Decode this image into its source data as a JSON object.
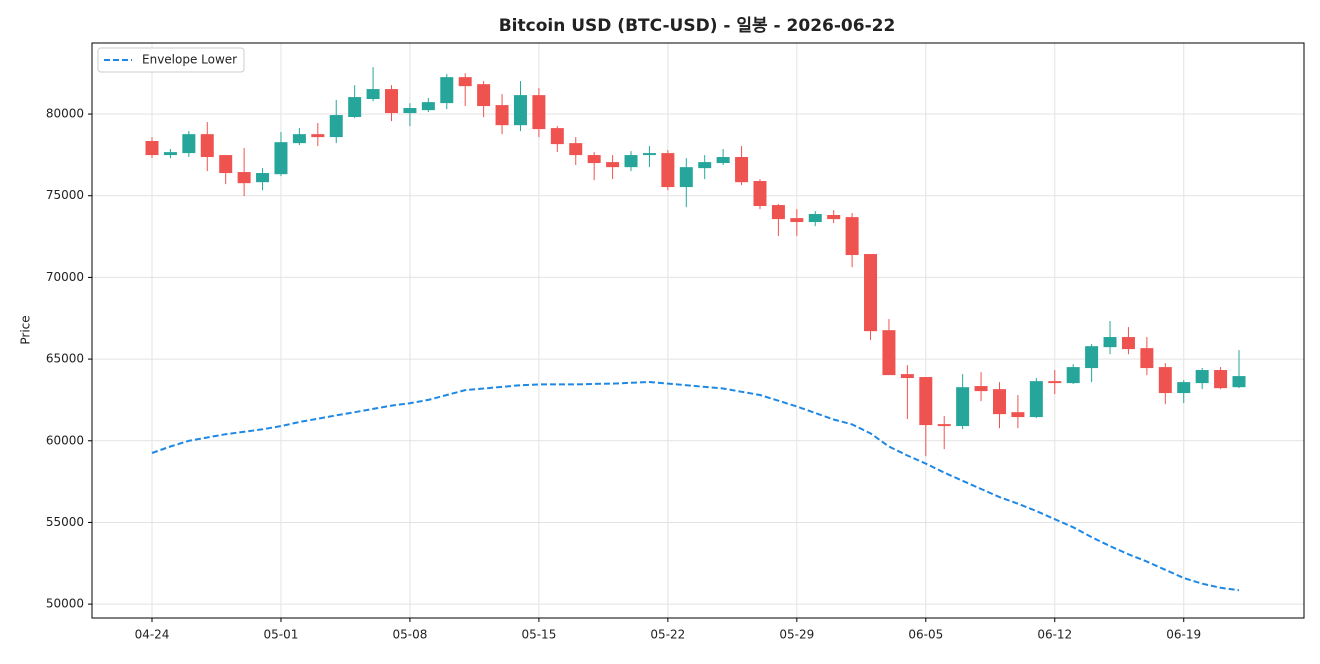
{
  "chart_data": {
    "type": "candlestick",
    "title": "Bitcoin USD (BTC-USD) - 일봉 - 2026-06-22",
    "ylabel": "Price",
    "categories": [
      "04-24",
      null,
      null,
      null,
      null,
      null,
      null,
      "05-01",
      null,
      null,
      null,
      null,
      null,
      null,
      "05-08",
      null,
      null,
      null,
      null,
      null,
      null,
      "05-15",
      null,
      null,
      null,
      null,
      null,
      null,
      "05-22",
      null,
      null,
      null,
      null,
      null,
      null,
      "05-29",
      null,
      null,
      null,
      null,
      null,
      null,
      "06-05",
      null,
      null,
      null,
      null,
      null,
      null,
      "06-12",
      null,
      null,
      null,
      null,
      null,
      null,
      "06-19",
      null,
      null,
      null
    ],
    "open": [
      78350,
      77490,
      77610,
      78770,
      77490,
      76450,
      75830,
      76320,
      78220,
      78770,
      78590,
      79820,
      80920,
      81530,
      80060,
      80240,
      80670,
      82260,
      81830,
      80550,
      79320,
      81160,
      79140,
      78220,
      77490,
      77060,
      76750,
      77490,
      77610,
      75530,
      76690,
      77000,
      77370,
      75900,
      74430,
      73630,
      73390,
      73820,
      73690,
      71430,
      66770,
      64080,
      63900,
      61020,
      60900,
      63350,
      63160,
      61750,
      61450,
      63650,
      63530,
      64450,
      65730,
      66350,
      65670,
      64510,
      62920,
      63530,
      64330,
      63280
    ],
    "high": [
      78590,
      77860,
      78960,
      79510,
      77490,
      77920,
      76690,
      78900,
      79140,
      79450,
      80860,
      81770,
      82870,
      81770,
      80670,
      80980,
      82450,
      82500,
      82020,
      81220,
      82020,
      81590,
      79260,
      78590,
      77670,
      77490,
      77730,
      78040,
      77800,
      77300,
      77490,
      77860,
      78040,
      76020,
      74490,
      74180,
      74060,
      74120,
      73940,
      71430,
      67450,
      64630,
      63900,
      61510,
      64080,
      64200,
      63590,
      62800,
      63840,
      64330,
      64690,
      65920,
      67330,
      66960,
      66350,
      64750,
      63710,
      64450,
      64510,
      65550
    ],
    "low": [
      77300,
      77300,
      77370,
      76510,
      75710,
      74980,
      75340,
      76200,
      78100,
      78040,
      78220,
      79750,
      80790,
      79570,
      79260,
      80120,
      80300,
      80490,
      79810,
      78770,
      78960,
      78590,
      77670,
      76880,
      75950,
      76020,
      76510,
      76750,
      75340,
      74300,
      76020,
      76880,
      75650,
      74180,
      72530,
      72530,
      73140,
      73320,
      70630,
      66160,
      64020,
      61330,
      59060,
      59490,
      60710,
      62430,
      60770,
      60770,
      61390,
      62860,
      63470,
      63590,
      65300,
      65300,
      64020,
      62240,
      62310,
      63160,
      63160,
      63220
    ],
    "close": [
      77490,
      77670,
      78770,
      77370,
      76390,
      75770,
      76390,
      78280,
      78770,
      78590,
      79940,
      81040,
      81530,
      80060,
      80370,
      80730,
      82260,
      81710,
      80490,
      79320,
      81160,
      79080,
      78160,
      77490,
      77000,
      76750,
      77490,
      77610,
      75530,
      76750,
      77060,
      77370,
      75830,
      74370,
      73570,
      73390,
      73880,
      73570,
      71370,
      66710,
      64020,
      63840,
      60960,
      60900,
      63280,
      63040,
      61630,
      61450,
      63650,
      63530,
      64510,
      65790,
      66350,
      65610,
      64450,
      62920,
      63590,
      64330,
      63220,
      63960
    ],
    "up_color": "#26a69a",
    "down_color": "#ef5350",
    "series": [
      {
        "name": "Envelope Lower",
        "color": "#1e88e5",
        "style": "dashed",
        "values": [
          59250,
          59650,
          60000,
          60200,
          60400,
          60550,
          60700,
          60900,
          61150,
          61350,
          61550,
          61750,
          61950,
          62150,
          62300,
          62500,
          62800,
          63100,
          63200,
          63300,
          63400,
          63450,
          63450,
          63450,
          63480,
          63500,
          63550,
          63600,
          63500,
          63400,
          63300,
          63200,
          63000,
          62800,
          62450,
          62100,
          61700,
          61300,
          61000,
          60450,
          59650,
          59100,
          58600,
          58050,
          57550,
          57050,
          56550,
          56150,
          55700,
          55200,
          54700,
          54100,
          53550,
          53050,
          52600,
          52100,
          51600,
          51250,
          51000,
          50850
        ]
      }
    ],
    "ylim": [
      49150,
      84350
    ],
    "yticks": [
      50000,
      55000,
      60000,
      65000,
      70000,
      75000,
      80000
    ],
    "grid": true,
    "legend": "upper left"
  }
}
